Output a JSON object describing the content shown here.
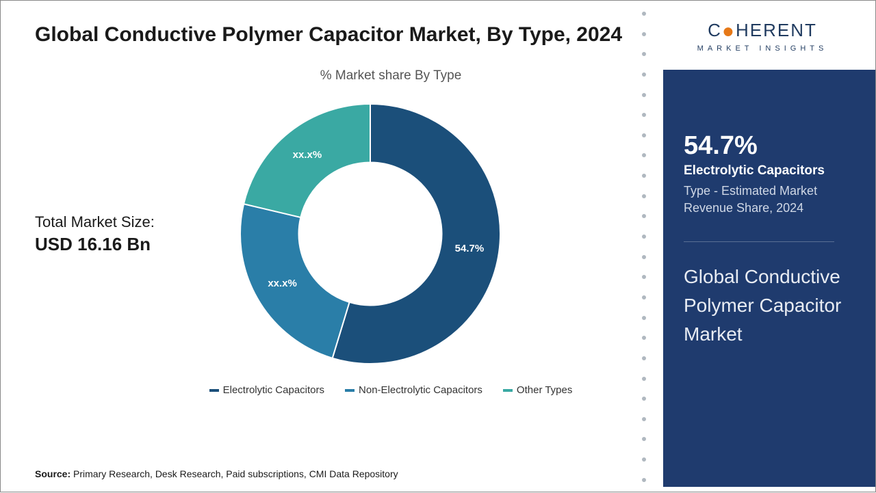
{
  "title": "Global Conductive Polymer Capacitor Market, By Type, 2024",
  "chart_subtitle": "% Market share By Type",
  "market_size": {
    "label": "Total Market Size:",
    "value": "USD 16.16 Bn"
  },
  "donut": {
    "type": "donut",
    "inner_radius_pct": 55,
    "outer_radius_pct": 100,
    "background": "#ffffff",
    "gap_color": "#ffffff",
    "gap_width": 2,
    "start_angle_deg": -90,
    "slices": [
      {
        "name": "Electrolytic Capacitors",
        "value": 54.7,
        "label": "54.7%",
        "color": "#1b4f7a"
      },
      {
        "name": "Non-Electrolytic Capacitors",
        "value": 24.0,
        "label": "xx.x%",
        "color": "#2a7ea8"
      },
      {
        "name": "Other Types",
        "value": 21.3,
        "label": "xx.x%",
        "color": "#3aa9a3"
      }
    ]
  },
  "legend": [
    {
      "label": "Electrolytic Capacitors",
      "color": "#1b4f7a"
    },
    {
      "label": "Non-Electrolytic Capacitors",
      "color": "#2a7ea8"
    },
    {
      "label": "Other Types",
      "color": "#3aa9a3"
    }
  ],
  "source": {
    "label": "Source:",
    "text": " Primary Research, Desk Research, Paid subscriptions, CMI Data Repository"
  },
  "logo": {
    "main_pre": "C",
    "main_post": "HERENT",
    "sub": "MARKET INSIGHTS"
  },
  "panel": {
    "pct": "54.7%",
    "name": "Electrolytic Capacitors",
    "desc": "Type - Estimated Market Revenue Share, 2024",
    "title": "Global Conductive Polymer Capacitor Market"
  },
  "colors": {
    "panel_bg": "#1f3b6e",
    "text_dark": "#1a1a1a",
    "accent_orange": "#e67817"
  }
}
